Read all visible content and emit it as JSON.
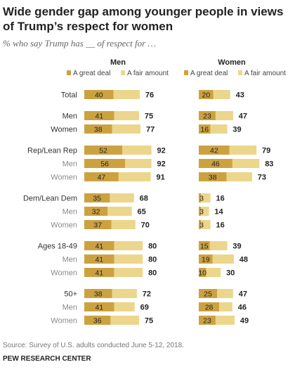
{
  "title": "Wide gender gap among younger people in views of Trump’s respect for women",
  "subtitle": "% who say Trump has __ of respect for …",
  "source": "Source: Survey of U.S. adults conducted June 5-12, 2018.",
  "organization": "PEW RESEARCH CENTER",
  "colors": {
    "great_deal": "#cca240",
    "fair_amount": "#ecd68c"
  },
  "chart_data": {
    "type": "bar",
    "stacked": true,
    "panels": [
      "Men",
      "Women"
    ],
    "series_labels": [
      "A great deal",
      "A fair amount"
    ],
    "groups": [
      {
        "rows": [
          {
            "label": "Total",
            "sub": false,
            "men": [
              40,
              76
            ],
            "women": [
              20,
              43
            ]
          }
        ]
      },
      {
        "rows": [
          {
            "label": "Men",
            "sub": false,
            "men": [
              41,
              75
            ],
            "women": [
              23,
              47
            ]
          },
          {
            "label": "Women",
            "sub": false,
            "men": [
              38,
              77
            ],
            "women": [
              16,
              39
            ]
          }
        ]
      },
      {
        "rows": [
          {
            "label": "Rep/Lean Rep",
            "sub": false,
            "men": [
              52,
              92
            ],
            "women": [
              42,
              79
            ]
          },
          {
            "label": "Men",
            "sub": true,
            "men": [
              56,
              92
            ],
            "women": [
              46,
              83
            ]
          },
          {
            "label": "Women",
            "sub": true,
            "men": [
              47,
              91
            ],
            "women": [
              38,
              73
            ]
          }
        ]
      },
      {
        "rows": [
          {
            "label": "Dem/Lean Dem",
            "sub": false,
            "men": [
              35,
              68
            ],
            "women": [
              3,
              16
            ]
          },
          {
            "label": "Men",
            "sub": true,
            "men": [
              32,
              65
            ],
            "women": [
              3,
              14
            ]
          },
          {
            "label": "Women",
            "sub": true,
            "men": [
              37,
              70
            ],
            "women": [
              3,
              16
            ]
          }
        ]
      },
      {
        "rows": [
          {
            "label": "Ages 18-49",
            "sub": false,
            "men": [
              41,
              80
            ],
            "women": [
              15,
              39
            ]
          },
          {
            "label": "Men",
            "sub": true,
            "men": [
              41,
              80
            ],
            "women": [
              19,
              48
            ]
          },
          {
            "label": "Women",
            "sub": true,
            "men": [
              41,
              80
            ],
            "women": [
              10,
              30
            ]
          }
        ]
      },
      {
        "rows": [
          {
            "label": "50+",
            "sub": false,
            "men": [
              38,
              72
            ],
            "women": [
              25,
              47
            ]
          },
          {
            "label": "Men",
            "sub": true,
            "men": [
              41,
              69
            ],
            "women": [
              28,
              46
            ]
          },
          {
            "label": "Women",
            "sub": true,
            "men": [
              36,
              75
            ],
            "women": [
              23,
              49
            ]
          }
        ]
      }
    ]
  }
}
